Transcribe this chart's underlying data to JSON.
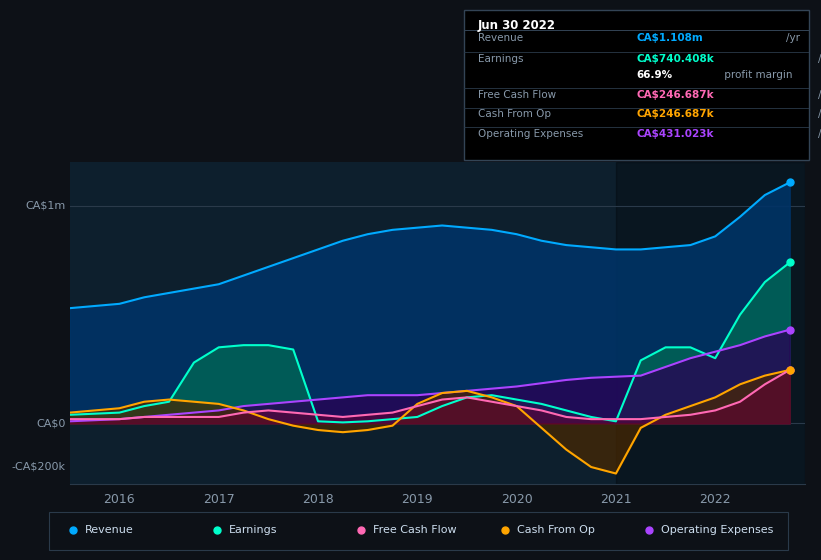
{
  "bg_color": "#0d1117",
  "chart_bg": "#0d1f2d",
  "ylabel_ca1m": "CA$1m",
  "ylabel_ca0": "CA$0",
  "ylabel_neg200k": "-CA$200k",
  "xlim": [
    2015.5,
    2022.9
  ],
  "ylim": [
    -280000,
    1200000
  ],
  "legend": [
    "Revenue",
    "Earnings",
    "Free Cash Flow",
    "Cash From Op",
    "Operating Expenses"
  ],
  "legend_colors": [
    "#00aaff",
    "#00ffcc",
    "#ff69b4",
    "#ffa500",
    "#aa44ff"
  ],
  "info_box": {
    "date": "Jun 30 2022",
    "rows": [
      {
        "label": "Revenue",
        "value": "CA$1.108m",
        "unit": "/yr",
        "color": "#00aaff"
      },
      {
        "label": "Earnings",
        "value": "CA$740.408k",
        "unit": "/yr",
        "color": "#00ffcc"
      },
      {
        "label": "",
        "value": "66.9%",
        "extra": " profit margin",
        "color": "#ffffff"
      },
      {
        "label": "Free Cash Flow",
        "value": "CA$246.687k",
        "unit": "/yr",
        "color": "#ff69b4"
      },
      {
        "label": "Cash From Op",
        "value": "CA$246.687k",
        "unit": "/yr",
        "color": "#ffa500"
      },
      {
        "label": "Operating Expenses",
        "value": "CA$431.023k",
        "unit": "/yr",
        "color": "#aa44ff"
      }
    ]
  },
  "x_ticks": [
    2016,
    2017,
    2018,
    2019,
    2020,
    2021,
    2022
  ],
  "revenue": {
    "color": "#00aaff",
    "fill_color": "#003366",
    "x": [
      2015.5,
      2016.0,
      2016.25,
      2016.5,
      2016.75,
      2017.0,
      2017.25,
      2017.5,
      2017.75,
      2018.0,
      2018.25,
      2018.5,
      2018.75,
      2019.0,
      2019.25,
      2019.5,
      2019.75,
      2020.0,
      2020.25,
      2020.5,
      2020.75,
      2021.0,
      2021.25,
      2021.5,
      2021.75,
      2022.0,
      2022.25,
      2022.5,
      2022.75
    ],
    "y": [
      530000,
      550000,
      580000,
      600000,
      620000,
      640000,
      680000,
      720000,
      760000,
      800000,
      840000,
      870000,
      890000,
      900000,
      910000,
      900000,
      890000,
      870000,
      840000,
      820000,
      810000,
      800000,
      800000,
      810000,
      820000,
      860000,
      950000,
      1050000,
      1108000
    ]
  },
  "earnings": {
    "color": "#00ffcc",
    "fill_color": "#006655",
    "x": [
      2015.5,
      2016.0,
      2016.25,
      2016.5,
      2016.75,
      2017.0,
      2017.25,
      2017.5,
      2017.75,
      2018.0,
      2018.25,
      2018.5,
      2018.75,
      2019.0,
      2019.25,
      2019.5,
      2019.75,
      2020.0,
      2020.25,
      2020.5,
      2020.75,
      2021.0,
      2021.25,
      2021.5,
      2021.75,
      2022.0,
      2022.25,
      2022.5,
      2022.75
    ],
    "y": [
      40000,
      50000,
      80000,
      100000,
      280000,
      350000,
      360000,
      360000,
      340000,
      10000,
      5000,
      10000,
      20000,
      30000,
      80000,
      120000,
      130000,
      110000,
      90000,
      60000,
      30000,
      10000,
      290000,
      350000,
      350000,
      300000,
      500000,
      650000,
      740000
    ]
  },
  "free_cash_flow": {
    "color": "#ff69b4",
    "fill_color": "#660033",
    "x": [
      2015.5,
      2016.0,
      2016.25,
      2016.5,
      2016.75,
      2017.0,
      2017.25,
      2017.5,
      2017.75,
      2018.0,
      2018.25,
      2018.5,
      2018.75,
      2019.0,
      2019.25,
      2019.5,
      2019.75,
      2020.0,
      2020.25,
      2020.5,
      2020.75,
      2021.0,
      2021.25,
      2021.5,
      2021.75,
      2022.0,
      2022.25,
      2022.5,
      2022.75
    ],
    "y": [
      20000,
      20000,
      30000,
      30000,
      30000,
      30000,
      50000,
      60000,
      50000,
      40000,
      30000,
      40000,
      50000,
      80000,
      110000,
      120000,
      100000,
      80000,
      60000,
      30000,
      20000,
      20000,
      20000,
      30000,
      40000,
      60000,
      100000,
      180000,
      246000
    ]
  },
  "cash_from_op": {
    "color": "#ffa500",
    "fill_color": "#4a2800",
    "x": [
      2015.5,
      2016.0,
      2016.25,
      2016.5,
      2016.75,
      2017.0,
      2017.25,
      2017.5,
      2017.75,
      2018.0,
      2018.25,
      2018.5,
      2018.75,
      2019.0,
      2019.25,
      2019.5,
      2019.75,
      2020.0,
      2020.25,
      2020.5,
      2020.75,
      2021.0,
      2021.25,
      2021.5,
      2021.75,
      2022.0,
      2022.25,
      2022.5,
      2022.75
    ],
    "y": [
      50000,
      70000,
      100000,
      110000,
      100000,
      90000,
      60000,
      20000,
      -10000,
      -30000,
      -40000,
      -30000,
      -10000,
      90000,
      140000,
      150000,
      120000,
      80000,
      -20000,
      -120000,
      -200000,
      -230000,
      -20000,
      40000,
      80000,
      120000,
      180000,
      220000,
      246000
    ]
  },
  "operating_expenses": {
    "color": "#aa44ff",
    "fill_color": "#2a0055",
    "x": [
      2015.5,
      2016.0,
      2016.25,
      2016.5,
      2016.75,
      2017.0,
      2017.25,
      2017.5,
      2017.75,
      2018.0,
      2018.25,
      2018.5,
      2018.75,
      2019.0,
      2019.25,
      2019.5,
      2019.75,
      2020.0,
      2020.25,
      2020.5,
      2020.75,
      2021.0,
      2021.25,
      2021.5,
      2021.75,
      2022.0,
      2022.25,
      2022.5,
      2022.75
    ],
    "y": [
      10000,
      20000,
      30000,
      40000,
      50000,
      60000,
      80000,
      90000,
      100000,
      110000,
      120000,
      130000,
      130000,
      130000,
      140000,
      150000,
      160000,
      170000,
      185000,
      200000,
      210000,
      215000,
      220000,
      260000,
      300000,
      330000,
      360000,
      400000,
      431000
    ]
  },
  "dark_overlay_start": 2021.0,
  "dark_overlay_end": 2022.9
}
